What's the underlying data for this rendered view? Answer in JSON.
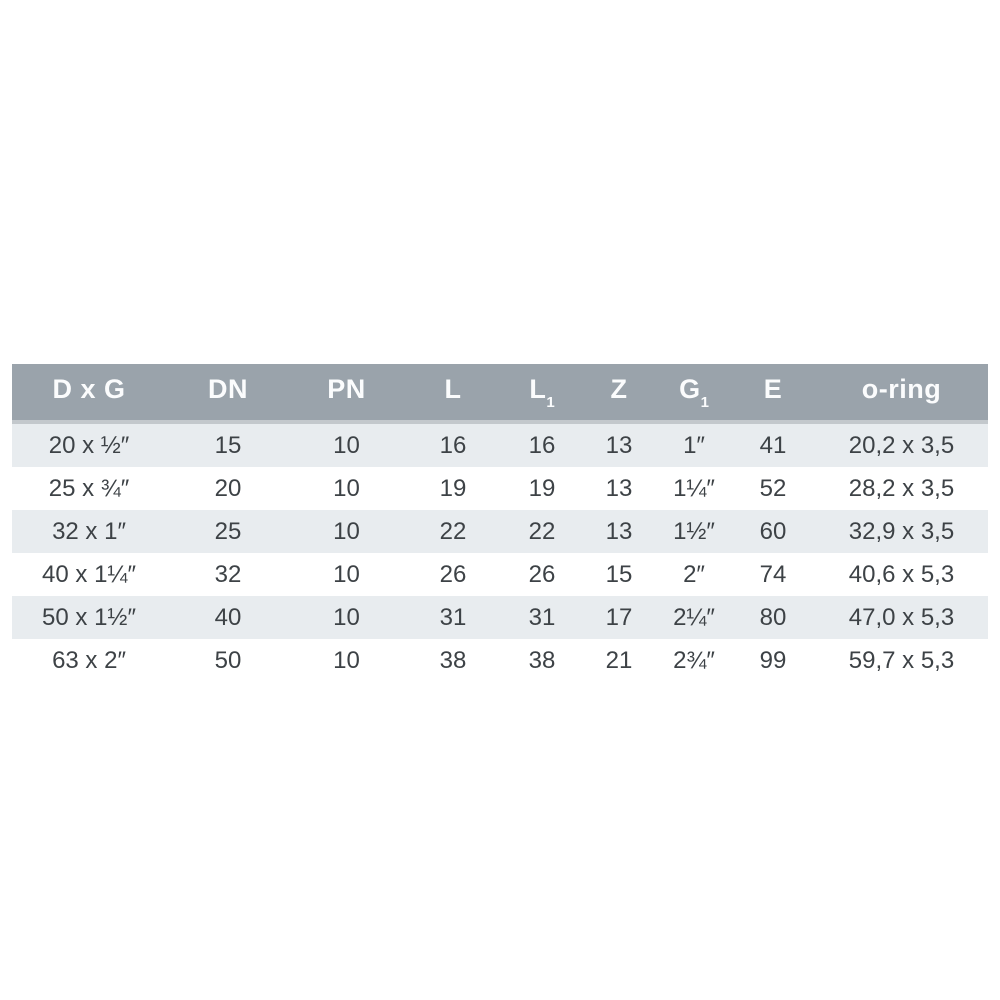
{
  "chart_data": {
    "type": "table",
    "title": "",
    "columns": [
      "D x G",
      "DN",
      "PN",
      "L",
      "L₁",
      "Z",
      "G₁",
      "E",
      "o-ring"
    ],
    "rows": [
      [
        "20 x ½″",
        "15",
        "10",
        "16",
        "16",
        "13",
        "1″",
        "41",
        "20,2 x 3,5"
      ],
      [
        "25 x ¾″",
        "20",
        "10",
        "19",
        "19",
        "13",
        "1¼″",
        "52",
        "28,2 x 3,5"
      ],
      [
        "32 x 1″",
        "25",
        "10",
        "22",
        "22",
        "13",
        "1½″",
        "60",
        "32,9 x 3,5"
      ],
      [
        "40 x 1¼″",
        "32",
        "10",
        "26",
        "26",
        "15",
        "2″",
        "74",
        "40,6 x 5,3"
      ],
      [
        "50 x 1½″",
        "40",
        "10",
        "31",
        "31",
        "17",
        "2¼″",
        "80",
        "47,0 x 5,3"
      ],
      [
        "63 x 2″",
        "50",
        "10",
        "38",
        "38",
        "21",
        "2¾″",
        "99",
        "59,7 x 5,3"
      ]
    ]
  },
  "table": {
    "columns": [
      {
        "id": "dxg",
        "label": "D x G",
        "sub": ""
      },
      {
        "id": "dn",
        "label": "DN",
        "sub": ""
      },
      {
        "id": "pn",
        "label": "PN",
        "sub": ""
      },
      {
        "id": "l",
        "label": "L",
        "sub": ""
      },
      {
        "id": "l1",
        "label": "L",
        "sub": "1"
      },
      {
        "id": "z",
        "label": "Z",
        "sub": ""
      },
      {
        "id": "g1",
        "label": "G",
        "sub": "1"
      },
      {
        "id": "e",
        "label": "E",
        "sub": ""
      },
      {
        "id": "oring",
        "label": "o-ring",
        "sub": ""
      }
    ],
    "rows": [
      [
        "20 x ½″",
        "15",
        "10",
        "16",
        "16",
        "13",
        "1″",
        "41",
        "20,2 x 3,5"
      ],
      [
        "25 x ¾″",
        "20",
        "10",
        "19",
        "19",
        "13",
        "1¼″",
        "52",
        "28,2 x 3,5"
      ],
      [
        "32 x 1″",
        "25",
        "10",
        "22",
        "22",
        "13",
        "1½″",
        "60",
        "32,9 x 3,5"
      ],
      [
        "40 x 1¼″",
        "32",
        "10",
        "26",
        "26",
        "15",
        "2″",
        "74",
        "40,6 x 5,3"
      ],
      [
        "50 x 1½″",
        "40",
        "10",
        "31",
        "31",
        "17",
        "2¼″",
        "80",
        "47,0 x 5,3"
      ],
      [
        "63 x 2″",
        "50",
        "10",
        "38",
        "38",
        "21",
        "2¾″",
        "99",
        "59,7 x 5,3"
      ]
    ],
    "colors": {
      "header_bg": "#9aa3ab",
      "header_text": "#fbfcfd",
      "header_divider": "#c3c8cc",
      "stripe_row_bg": "#e8ecef",
      "plain_row_bg": "#ffffff",
      "cell_text": "#3d4246",
      "page_bg": "#ffffff"
    }
  }
}
